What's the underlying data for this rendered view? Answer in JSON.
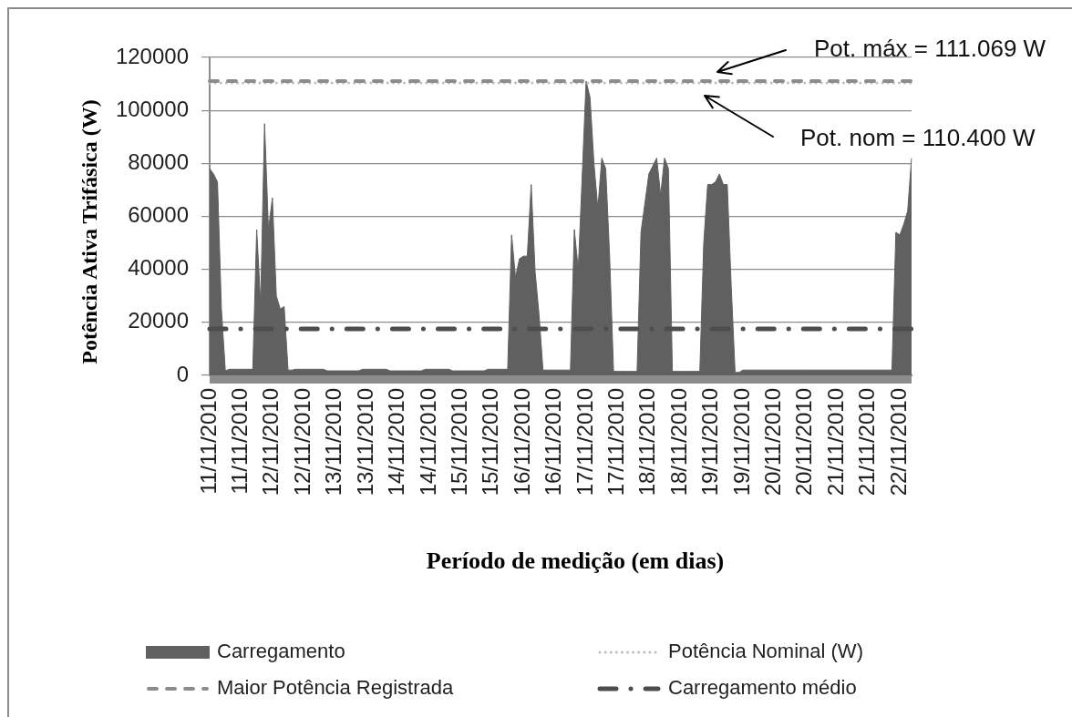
{
  "chart_data": {
    "type": "area",
    "xlabel": "Período de medição (em dias)",
    "ylabel": "Potência Ativa Trifásica (W)",
    "categories": [
      "11/11/2010",
      null,
      null,
      null,
      null,
      null,
      null,
      null,
      "11/11/2010",
      null,
      null,
      null,
      null,
      null,
      null,
      null,
      "12/11/2010",
      null,
      null,
      null,
      null,
      null,
      null,
      null,
      "12/11/2010",
      null,
      null,
      null,
      null,
      null,
      null,
      null,
      "13/11/2010",
      null,
      null,
      null,
      null,
      null,
      null,
      null,
      "13/11/2010",
      null,
      null,
      null,
      null,
      null,
      null,
      null,
      "14/11/2010",
      null,
      null,
      null,
      null,
      null,
      null,
      null,
      "14/11/2010",
      null,
      null,
      null,
      null,
      null,
      null,
      null,
      "15/11/2010",
      null,
      null,
      null,
      null,
      null,
      null,
      null,
      "15/11/2010",
      null,
      null,
      null,
      null,
      null,
      null,
      null,
      "16/11/2010",
      null,
      null,
      null,
      null,
      null,
      null,
      null,
      "16/11/2010",
      null,
      null,
      null,
      null,
      null,
      null,
      null,
      "17/11/2010",
      null,
      null,
      null,
      null,
      null,
      null,
      null,
      "17/11/2010",
      null,
      null,
      null,
      null,
      null,
      null,
      null,
      "18/11/2010",
      null,
      null,
      null,
      null,
      null,
      null,
      null,
      "18/11/2010",
      null,
      null,
      null,
      null,
      null,
      null,
      null,
      "19/11/2010",
      null,
      null,
      null,
      null,
      null,
      null,
      null,
      "19/11/2010",
      null,
      null,
      null,
      null,
      null,
      null,
      null,
      "20/11/2010",
      null,
      null,
      null,
      null,
      null,
      null,
      null,
      "20/11/2010",
      null,
      null,
      null,
      null,
      null,
      null,
      null,
      "21/11/2010",
      null,
      null,
      null,
      null,
      null,
      null,
      null,
      "21/11/2010",
      null,
      null,
      null,
      null,
      null,
      null,
      null,
      "22/11/2010",
      null,
      null,
      null
    ],
    "series": [
      {
        "name": "Carregamento",
        "color": "#606060",
        "values": [
          78000,
          76000,
          73000,
          25000,
          1700,
          2300,
          2300,
          2300,
          2300,
          2300,
          2300,
          2300,
          55000,
          27000,
          95000,
          55000,
          67000,
          30000,
          25000,
          26000,
          2000,
          2000,
          2300,
          2300,
          2300,
          2300,
          2300,
          2300,
          2300,
          2300,
          1700,
          1700,
          1700,
          1700,
          1700,
          1700,
          1700,
          1700,
          1700,
          2300,
          2300,
          2300,
          2300,
          2300,
          2300,
          2300,
          1700,
          1700,
          1700,
          1700,
          1700,
          1700,
          1700,
          1700,
          1700,
          2300,
          2300,
          2300,
          2300,
          2300,
          2300,
          2300,
          1700,
          1700,
          1700,
          1700,
          1700,
          1700,
          1700,
          1700,
          1700,
          2300,
          2300,
          2300,
          2300,
          2300,
          2300,
          53000,
          37000,
          44000,
          45000,
          45000,
          72000,
          39000,
          23000,
          2000,
          2000,
          2000,
          2000,
          2000,
          2000,
          2000,
          2000,
          55000,
          40000,
          75000,
          111000,
          105000,
          80000,
          63000,
          82000,
          78000,
          45000,
          1500,
          1500,
          1500,
          1500,
          1500,
          1500,
          1500,
          54000,
          65000,
          76000,
          79000,
          82000,
          68000,
          82000,
          78000,
          1500,
          1500,
          1500,
          1500,
          1500,
          1500,
          1500,
          1500,
          50000,
          72000,
          72000,
          73000,
          76000,
          72000,
          72000,
          34000,
          1100,
          1100,
          2000,
          2000,
          2000,
          2000,
          2000,
          2000,
          2000,
          2000,
          2000,
          2000,
          2000,
          2000,
          2000,
          2000,
          2000,
          2000,
          2000,
          2000,
          2000,
          2000,
          2000,
          2000,
          2000,
          2000,
          2000,
          2000,
          2000,
          2000,
          2000,
          2000,
          2000,
          2000,
          2000,
          2000,
          2000,
          2000,
          2000,
          2000,
          2000,
          54000,
          53000,
          57000,
          62000,
          82000
        ]
      }
    ],
    "ylim": [
      0,
      120000
    ],
    "yticks": [
      0,
      20000,
      40000,
      60000,
      80000,
      100000,
      120000
    ],
    "grid": "y",
    "legend": "bottom",
    "ref_lines": [
      {
        "axis": "y",
        "value": 110400,
        "label": "Potência Nominal (W)",
        "color": "#bfbfbf",
        "line_style": "dotted"
      },
      {
        "axis": "y",
        "value": 111069,
        "label": "Maior Potência Registrada",
        "color": "#8c8c8c",
        "line_style": "dashed"
      },
      {
        "axis": "y",
        "value": 17500,
        "label": "Carregamento médio",
        "color": "#4d4d4d",
        "line_style": "dashdot"
      }
    ],
    "annotations": [
      "Pot. máx = 111.069 W",
      "Pot. nom = 110.400 W"
    ]
  }
}
